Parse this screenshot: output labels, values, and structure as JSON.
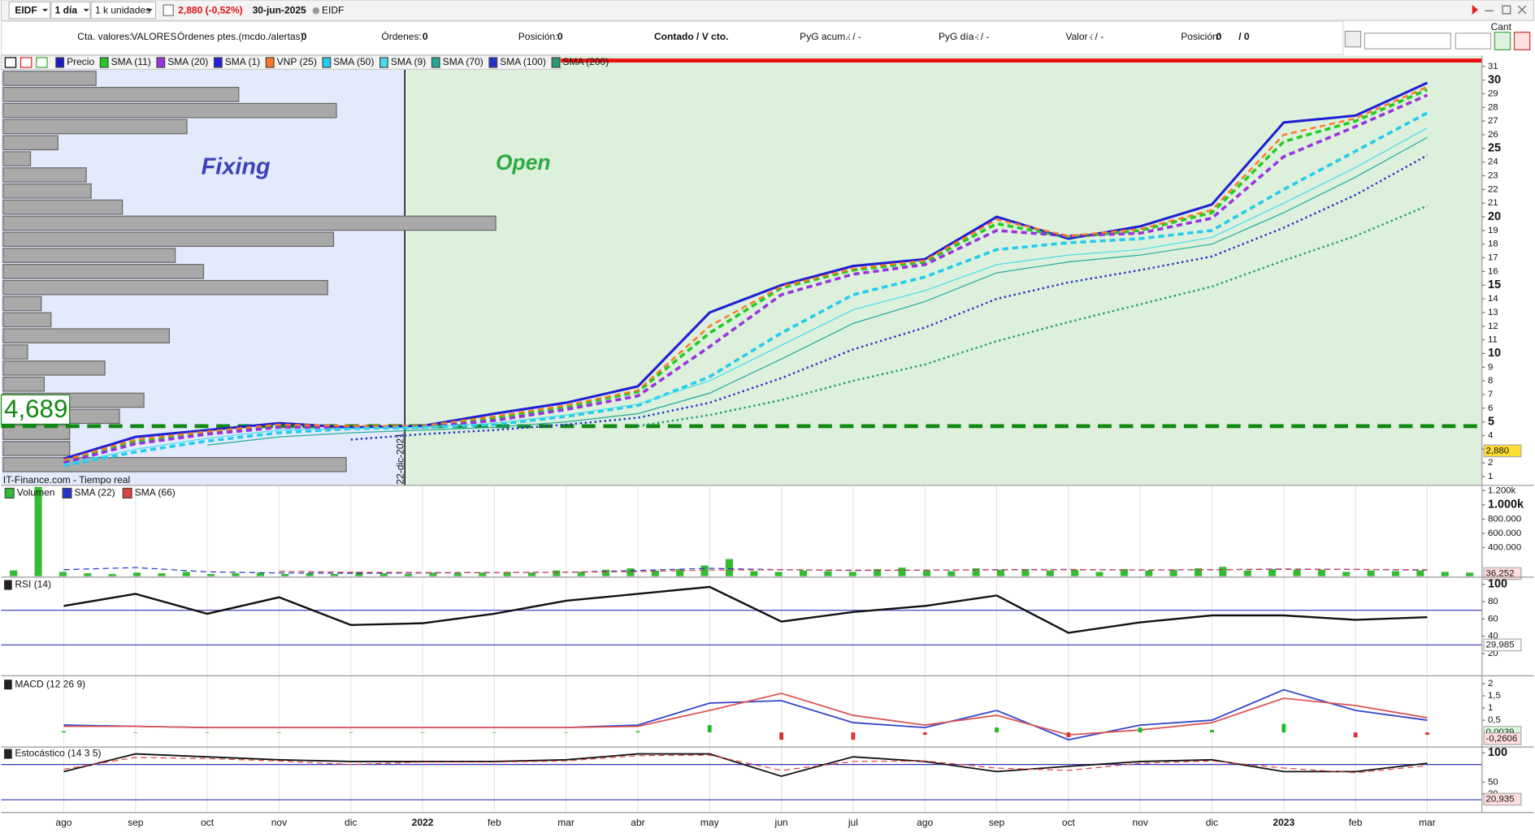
{
  "toolbar": {
    "symbol": "EIDF",
    "interval": "1 día",
    "units": "1 k unidades",
    "quote": "2,880 (-0,52%)",
    "date": "30-jun-2025",
    "market": "EIDF",
    "quantity_label": "Cant"
  },
  "account_bar": [
    "Cta. valores:",
    "VALORES",
    "Órdenes ptes.(mcdo./alertas):",
    "0",
    "Órdenes:",
    "0",
    "Posición:",
    "0",
    "Contado / V cto.",
    "PyG acum.:",
    "- / -",
    "PyG día :",
    "- / -",
    "Valor :",
    "- / -",
    "Posición:",
    "0",
    "/ 0"
  ],
  "zones": {
    "fixing": "Fixing",
    "open": "Open",
    "divider": "22-dic-2021",
    "source": "IT-Finance.com - Tiempo real"
  },
  "volume_profile": [
    95,
    241,
    341,
    188,
    56,
    28,
    85,
    90,
    122,
    504,
    338,
    176,
    205,
    332,
    39,
    49,
    170,
    25,
    104,
    42,
    144,
    119,
    68,
    68,
    351
  ],
  "chart_data": [
    {
      "type": "line",
      "categories": [
        "ago",
        "sep",
        "oct",
        "nov",
        "dic",
        "2022",
        "feb",
        "mar",
        "abr",
        "may",
        "jun",
        "jul",
        "ago",
        "sep",
        "oct",
        "nov",
        "dic",
        "2023",
        "feb",
        "mar"
      ],
      "ylim": [
        0.6,
        31.6
      ],
      "yticks": [
        1,
        2,
        3,
        4,
        5,
        6,
        7,
        8,
        9,
        10,
        11,
        12,
        13,
        14,
        15,
        16,
        17,
        18,
        19,
        20,
        21,
        22,
        23,
        24,
        25,
        26,
        27,
        28,
        29,
        30,
        31
      ],
      "reference_line": {
        "value": 4.689,
        "label": "4,689",
        "color": "#118811"
      },
      "badges": [
        {
          "value": 2.88,
          "label": "2,880",
          "color": "#ffdd33"
        }
      ],
      "series": [
        {
          "name": "Precio",
          "color": "#1a1acc",
          "line_style": "solid",
          "line_width": 2.5,
          "values": [
            2.3,
            3.9,
            4.4,
            4.9,
            4.6,
            4.7,
            5.6,
            6.4,
            7.6,
            13,
            15,
            16.4,
            16.9,
            20,
            18.4,
            19.3,
            20.9,
            26.9,
            27.4,
            29.8
          ]
        },
        {
          "name": "SMA (11)",
          "color": "#22cc22",
          "line_style": "dashed",
          "line_width": 3,
          "values": [
            2.1,
            3.6,
            4.2,
            4.7,
            4.6,
            4.6,
            5.3,
            6.1,
            7.2,
            11.5,
            14.8,
            16.1,
            16.7,
            19.5,
            18.5,
            19.0,
            20.3,
            25.5,
            27.0,
            29.3
          ]
        },
        {
          "name": "SMA (20)",
          "color": "#9933dd",
          "line_style": "dashed",
          "line_width": 3,
          "values": [
            2.0,
            3.4,
            4.1,
            4.6,
            4.6,
            4.6,
            5.1,
            5.9,
            6.9,
            10.5,
            14.3,
            15.8,
            16.5,
            19.0,
            18.6,
            18.8,
            19.9,
            24.4,
            26.6,
            28.9
          ]
        },
        {
          "name": "SMA (1)",
          "color": "#2222dd",
          "line_style": "solid",
          "line_width": 1,
          "values": [
            2.3,
            3.9,
            4.4,
            4.9,
            4.6,
            4.7,
            5.6,
            6.4,
            7.6,
            13,
            15,
            16.4,
            16.9,
            20,
            18.4,
            19.3,
            20.9,
            26.9,
            27.4,
            29.8
          ]
        },
        {
          "name": "VNP (25)",
          "color": "#ff7722",
          "line_style": "dashed",
          "line_width": 2,
          "values": [
            2.2,
            3.7,
            4.3,
            4.8,
            4.7,
            4.7,
            5.4,
            6.2,
            7.3,
            12,
            14.9,
            16.2,
            16.8,
            19.8,
            18.6,
            19.1,
            20.5,
            26,
            27.2,
            29.5
          ]
        },
        {
          "name": "SMA (50)",
          "color": "#22ccee",
          "line_style": "dashed",
          "line_width": 3,
          "values": [
            1.8,
            2.8,
            3.6,
            4.2,
            4.5,
            4.6,
            4.8,
            5.4,
            6.2,
            8.3,
            11.5,
            14.3,
            15.6,
            17.6,
            18.1,
            18.4,
            19.0,
            22.0,
            24.8,
            27.6
          ]
        },
        {
          "name": "SMA (9)",
          "color": "#44ddee",
          "line_style": "solid",
          "line_width": 1,
          "values": [
            1.9,
            3.0,
            3.8,
            4.4,
            4.5,
            4.6,
            4.9,
            5.5,
            6.3,
            8.0,
            10.6,
            13.2,
            14.6,
            16.5,
            17.2,
            17.6,
            18.5,
            21.0,
            23.6,
            26.5
          ]
        },
        {
          "name": "SMA (70)",
          "color": "#22aa99",
          "line_style": "solid",
          "line_width": 1,
          "values": [
            null,
            null,
            3.3,
            3.9,
            4.2,
            4.4,
            4.6,
            5.0,
            5.6,
            7.1,
            9.6,
            12.2,
            13.8,
            15.9,
            16.7,
            17.2,
            18.0,
            20.3,
            22.9,
            25.8
          ]
        },
        {
          "name": "SMA (100)",
          "color": "#2233cc",
          "line_style": "dotted",
          "line_width": 2,
          "values": [
            null,
            null,
            null,
            null,
            3.7,
            4.1,
            4.4,
            4.8,
            5.3,
            6.4,
            8.2,
            10.3,
            11.9,
            14.0,
            15.2,
            16.1,
            17.1,
            19.2,
            21.6,
            24.5
          ]
        },
        {
          "name": "SMA (200)",
          "color": "#229977",
          "line_style": "dotted",
          "line_width": 2,
          "values": [
            null,
            null,
            null,
            null,
            null,
            null,
            null,
            null,
            4.7,
            5.5,
            6.6,
            8.0,
            9.2,
            10.9,
            12.3,
            13.6,
            14.9,
            16.8,
            18.6,
            20.8
          ]
        }
      ]
    },
    {
      "type": "bar",
      "ylim": [
        0,
        1260000
      ],
      "yticks": [
        {
          "value": 400000,
          "label": "400.000"
        },
        {
          "value": 600000,
          "label": "600.000"
        },
        {
          "value": 800000,
          "label": "800.000"
        },
        {
          "value": 1000000,
          "label": "1.000k"
        },
        {
          "value": 1200000,
          "label": "1.200k"
        }
      ],
      "badges": [
        {
          "value": 36252,
          "label": "36,252",
          "color": "#ffdddd"
        }
      ],
      "bars": {
        "name": "Volumen",
        "color": "#33bb33",
        "values": [
          80000,
          1250000,
          60000,
          40000,
          30000,
          50000,
          40000,
          60000,
          30000,
          40000,
          50000,
          30000,
          40000,
          30000,
          60000,
          40000,
          30000,
          50000,
          40000,
          50000,
          60000,
          50000,
          80000,
          60000,
          90000,
          110000,
          80000,
          100000,
          150000,
          240000,
          70000,
          60000,
          80000,
          70000,
          60000,
          100000,
          120000,
          80000,
          70000,
          110000,
          90000,
          100000,
          80000,
          90000,
          60000,
          100000,
          80000,
          90000,
          110000,
          130000,
          80000,
          100000,
          90000,
          90000,
          60000,
          80000,
          70000,
          80000,
          60000,
          50000
        ]
      },
      "series": [
        {
          "name": "SMA (22)",
          "color": "#2233cc",
          "line_style": "dashed",
          "line_width": 1,
          "values": [
            90000,
            120000,
            60000,
            45000,
            40000,
            45000,
            50000,
            55000,
            80000,
            110000,
            90000,
            80000,
            85000,
            90000,
            95000,
            85000,
            90000,
            100000,
            95000,
            85000
          ]
        },
        {
          "name": "SMA (66)",
          "color": "#dd4444",
          "line_style": "dashed",
          "line_width": 1,
          "values": [
            null,
            null,
            null,
            70000,
            55000,
            50000,
            50000,
            55000,
            65000,
            85000,
            90000,
            85000,
            85000,
            88000,
            90000,
            88000,
            90000,
            95000,
            94000,
            90000
          ]
        }
      ]
    },
    {
      "type": "line",
      "title": "RSI (14)",
      "ylim": [
        0,
        106
      ],
      "yticks": [
        20,
        40,
        60,
        80,
        100
      ],
      "levels": [
        70,
        30
      ],
      "badges": [
        {
          "value": 29.985,
          "label": "29,985",
          "color": "#ffffff"
        }
      ],
      "series": [
        {
          "color": "#111111",
          "line_style": "solid",
          "line_width": 2,
          "values": [
            75,
            89,
            66,
            85,
            53,
            55,
            66,
            81,
            89,
            97,
            57,
            68,
            75,
            87,
            44,
            56,
            64,
            64,
            59,
            62
          ]
        }
      ]
    },
    {
      "type": "line",
      "title": "MACD (12 26 9)",
      "ylim": [
        -0.6,
        2.2
      ],
      "yticks": [
        {
          "value": 0.5,
          "label": "0,5"
        },
        1,
        {
          "value": 1.5,
          "label": "1,5"
        },
        2
      ],
      "badges": [
        {
          "value": 0.0039,
          "label": "0,0039",
          "color": "#ddffdd"
        },
        {
          "value": -0.2606,
          "label": "-0,2606",
          "color": "#ffdddd"
        }
      ],
      "series": [
        {
          "color": "#3344cc",
          "line_style": "solid",
          "line_width": 1.5,
          "values": [
            0.3,
            0.25,
            0.2,
            0.2,
            0.2,
            0.2,
            0.2,
            0.2,
            0.3,
            1.2,
            1.3,
            0.4,
            0.2,
            0.9,
            -0.3,
            0.3,
            0.5,
            1.75,
            0.9,
            0.5
          ]
        },
        {
          "color": "#dd5555",
          "line_style": "solid",
          "line_width": 1.5,
          "values": [
            0.25,
            0.25,
            0.2,
            0.2,
            0.2,
            0.2,
            0.2,
            0.2,
            0.25,
            0.9,
            1.6,
            0.7,
            0.3,
            0.7,
            -0.1,
            0.1,
            0.4,
            1.4,
            1.1,
            0.6
          ]
        },
        {
          "color": "#22bb22",
          "line_style": "histogram",
          "line_width": 4,
          "values": [
            0.05,
            0,
            0,
            0,
            0,
            0,
            0,
            0,
            0.05,
            0.3,
            -0.3,
            -0.3,
            -0.1,
            0.2,
            -0.2,
            0.2,
            0.1,
            0.35,
            -0.2,
            -0.1
          ]
        }
      ]
    },
    {
      "type": "line",
      "title": "Estocástico (14 3 5)",
      "ylim": [
        0,
        108
      ],
      "yticks": [
        30,
        50,
        100
      ],
      "levels": [
        80,
        20
      ],
      "badges": [
        {
          "value": 20.935,
          "label": "20,935",
          "color": "#ffdddd"
        }
      ],
      "series": [
        {
          "color": "#111111",
          "line_style": "solid",
          "line_width": 1.5,
          "values": [
            68,
            98,
            93,
            88,
            85,
            85,
            85,
            88,
            98,
            98,
            60,
            93,
            85,
            68,
            77,
            85,
            88,
            68,
            68,
            82
          ]
        },
        {
          "color": "#dd4444",
          "line_style": "dashed",
          "line_width": 1,
          "values": [
            72,
            92,
            90,
            86,
            80,
            84,
            84,
            86,
            95,
            96,
            70,
            85,
            86,
            74,
            70,
            82,
            86,
            74,
            66,
            78
          ]
        }
      ]
    }
  ]
}
